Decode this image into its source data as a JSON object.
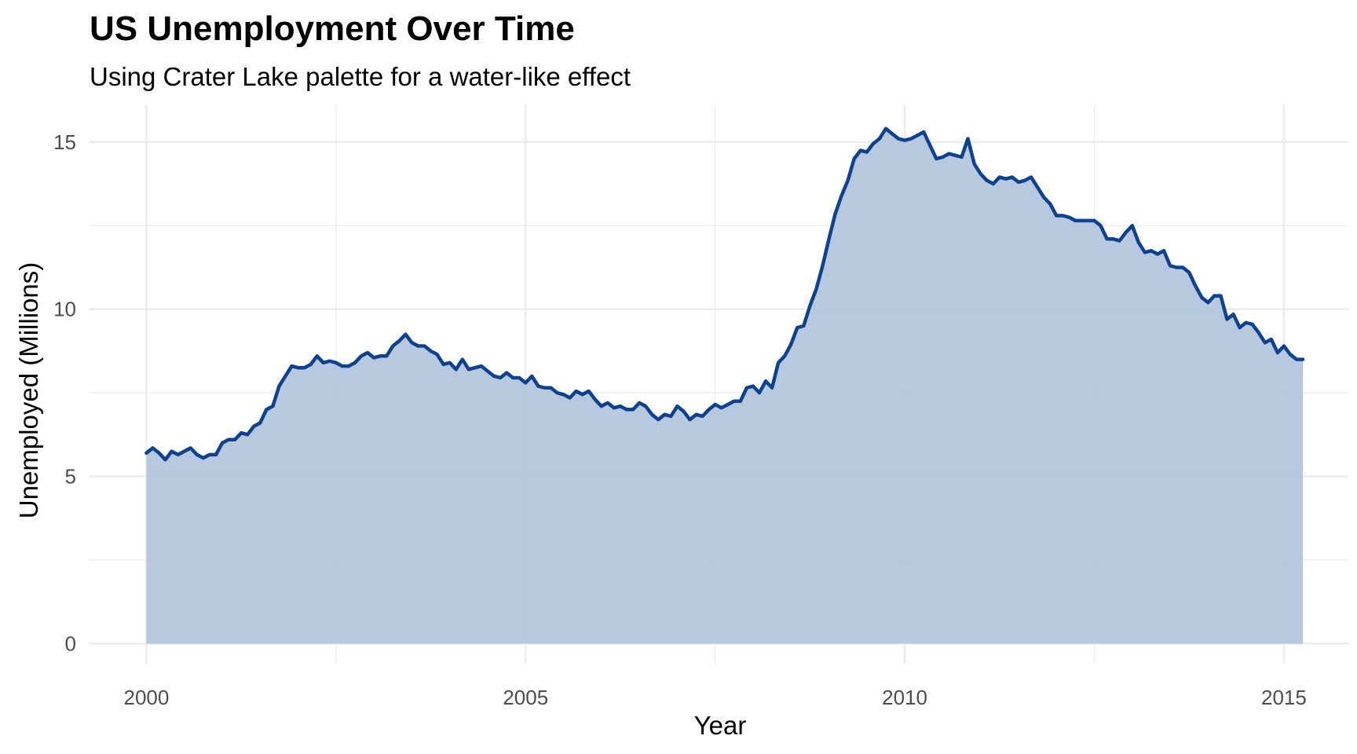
{
  "chart_data": {
    "type": "area",
    "title": "US Unemployment Over Time",
    "subtitle": "Using Crater Lake palette for a water-like effect",
    "xlabel": "Year",
    "ylabel": "Unemployed (Millions)",
    "xlim": [
      1999.25,
      2015.85
    ],
    "ylim": [
      -0.6,
      16.1
    ],
    "x_ticks": [
      2000,
      2005,
      2010,
      2015
    ],
    "x_tick_labels": [
      "2000",
      "2005",
      "2010",
      "2015"
    ],
    "y_ticks": [
      0,
      5,
      10,
      15
    ],
    "y_tick_labels": [
      "0",
      "5",
      "10",
      "15"
    ],
    "grid": true,
    "colors": {
      "line": "#0e428f",
      "fill": "#b3c6dc",
      "grid": "#ebebeb"
    },
    "series": [
      {
        "x": [
          2000.0,
          2000.083,
          2000.167,
          2000.25,
          2000.333,
          2000.417,
          2000.5,
          2000.583,
          2000.667,
          2000.75,
          2000.833,
          2000.917,
          2001.0,
          2001.083,
          2001.167,
          2001.25,
          2001.333,
          2001.417,
          2001.5,
          2001.583,
          2001.667,
          2001.75,
          2001.833,
          2001.917,
          2002.0,
          2002.083,
          2002.167,
          2002.25,
          2002.333,
          2002.417,
          2002.5,
          2002.583,
          2002.667,
          2002.75,
          2002.833,
          2002.917,
          2003.0,
          2003.083,
          2003.167,
          2003.25,
          2003.333,
          2003.417,
          2003.5,
          2003.583,
          2003.667,
          2003.75,
          2003.833,
          2003.917,
          2004.0,
          2004.083,
          2004.167,
          2004.25,
          2004.333,
          2004.417,
          2004.5,
          2004.583,
          2004.667,
          2004.75,
          2004.833,
          2004.917,
          2005.0,
          2005.083,
          2005.167,
          2005.25,
          2005.333,
          2005.417,
          2005.5,
          2005.583,
          2005.667,
          2005.75,
          2005.833,
          2005.917,
          2006.0,
          2006.083,
          2006.167,
          2006.25,
          2006.333,
          2006.417,
          2006.5,
          2006.583,
          2006.667,
          2006.75,
          2006.833,
          2006.917,
          2007.0,
          2007.083,
          2007.167,
          2007.25,
          2007.333,
          2007.417,
          2007.5,
          2007.583,
          2007.667,
          2007.75,
          2007.833,
          2007.917,
          2008.0,
          2008.083,
          2008.167,
          2008.25,
          2008.333,
          2008.417,
          2008.5,
          2008.583,
          2008.667,
          2008.75,
          2008.833,
          2008.917,
          2009.0,
          2009.083,
          2009.167,
          2009.25,
          2009.333,
          2009.417,
          2009.5,
          2009.583,
          2009.667,
          2009.75,
          2009.833,
          2009.917,
          2010.0,
          2010.083,
          2010.167,
          2010.25,
          2010.333,
          2010.417,
          2010.5,
          2010.583,
          2010.667,
          2010.75,
          2010.833,
          2010.917,
          2011.0,
          2011.083,
          2011.167,
          2011.25,
          2011.333,
          2011.417,
          2011.5,
          2011.583,
          2011.667,
          2011.75,
          2011.833,
          2011.917,
          2012.0,
          2012.083,
          2012.167,
          2012.25,
          2012.333,
          2012.417,
          2012.5,
          2012.583,
          2012.667,
          2012.75,
          2012.833,
          2012.917,
          2013.0,
          2013.083,
          2013.167,
          2013.25,
          2013.333,
          2013.417,
          2013.5,
          2013.583,
          2013.667,
          2013.75,
          2013.833,
          2013.917,
          2014.0,
          2014.083,
          2014.167,
          2014.25,
          2014.333,
          2014.417,
          2014.5,
          2014.583,
          2014.667,
          2014.75,
          2014.833,
          2014.917,
          2015.0,
          2015.083,
          2015.167,
          2015.25
        ],
        "values": [
          5.7,
          5.85,
          5.7,
          5.5,
          5.75,
          5.65,
          5.75,
          5.85,
          5.65,
          5.55,
          5.65,
          5.65,
          6.0,
          6.1,
          6.1,
          6.3,
          6.25,
          6.5,
          6.6,
          7.0,
          7.1,
          7.7,
          8.0,
          8.3,
          8.25,
          8.25,
          8.35,
          8.6,
          8.4,
          8.45,
          8.4,
          8.3,
          8.3,
          8.4,
          8.6,
          8.7,
          8.55,
          8.6,
          8.6,
          8.9,
          9.05,
          9.25,
          9.0,
          8.9,
          8.9,
          8.75,
          8.65,
          8.35,
          8.4,
          8.2,
          8.5,
          8.2,
          8.25,
          8.3,
          8.15,
          8.0,
          7.95,
          8.1,
          7.95,
          7.95,
          7.8,
          8.0,
          7.7,
          7.65,
          7.65,
          7.5,
          7.45,
          7.35,
          7.55,
          7.45,
          7.55,
          7.3,
          7.1,
          7.2,
          7.05,
          7.1,
          7.0,
          7.0,
          7.2,
          7.1,
          6.85,
          6.7,
          6.85,
          6.8,
          7.1,
          6.95,
          6.7,
          6.85,
          6.8,
          7.0,
          7.15,
          7.05,
          7.15,
          7.25,
          7.25,
          7.65,
          7.7,
          7.5,
          7.85,
          7.65,
          8.4,
          8.6,
          8.95,
          9.45,
          9.5,
          10.1,
          10.6,
          11.3,
          12.1,
          12.85,
          13.4,
          13.85,
          14.5,
          14.75,
          14.7,
          14.95,
          15.1,
          15.4,
          15.25,
          15.1,
          15.05,
          15.1,
          15.2,
          15.3,
          14.9,
          14.5,
          14.55,
          14.65,
          14.6,
          14.55,
          15.1,
          14.35,
          14.05,
          13.85,
          13.75,
          13.95,
          13.9,
          13.95,
          13.8,
          13.85,
          13.95,
          13.65,
          13.35,
          13.15,
          12.8,
          12.8,
          12.75,
          12.65,
          12.65,
          12.65,
          12.65,
          12.5,
          12.1,
          12.1,
          12.05,
          12.3,
          12.5,
          12.0,
          11.7,
          11.75,
          11.65,
          11.75,
          11.3,
          11.25,
          11.25,
          11.1,
          10.7,
          10.35,
          10.2,
          10.4,
          10.4,
          9.7,
          9.85,
          9.45,
          9.6,
          9.55,
          9.3,
          9.0,
          9.1,
          8.7,
          8.9,
          8.65,
          8.5,
          8.5
        ]
      }
    ]
  }
}
